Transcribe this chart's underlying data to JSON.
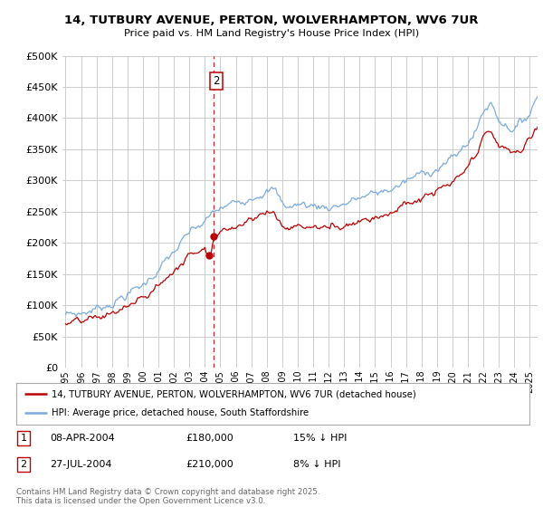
{
  "title": "14, TUTBURY AVENUE, PERTON, WOLVERHAMPTON, WV6 7UR",
  "subtitle": "Price paid vs. HM Land Registry's House Price Index (HPI)",
  "ylim": [
    0,
    500000
  ],
  "yticks": [
    0,
    50000,
    100000,
    150000,
    200000,
    250000,
    300000,
    350000,
    400000,
    450000,
    500000
  ],
  "xlim_start": 1994.8,
  "xlim_end": 2025.5,
  "red_color": "#bb0000",
  "blue_color": "#7aabe0",
  "legend_red": "14, TUTBURY AVENUE, PERTON, WOLVERHAMPTON, WV6 7UR (detached house)",
  "legend_blue": "HPI: Average price, detached house, South Staffordshire",
  "sale1_x": 2004.28,
  "sale1_y": 180000,
  "sale2_x": 2004.58,
  "sale2_y": 210000,
  "transactions": [
    {
      "num": "1",
      "date": "08-APR-2004",
      "price": "£180,000",
      "hpi": "15% ↓ HPI"
    },
    {
      "num": "2",
      "date": "27-JUL-2004",
      "price": "£210,000",
      "hpi": "8% ↓ HPI"
    }
  ],
  "copyright": "Contains HM Land Registry data © Crown copyright and database right 2025.\nThis data is licensed under the Open Government Licence v3.0.",
  "background_color": "#ffffff",
  "grid_color": "#cccccc"
}
